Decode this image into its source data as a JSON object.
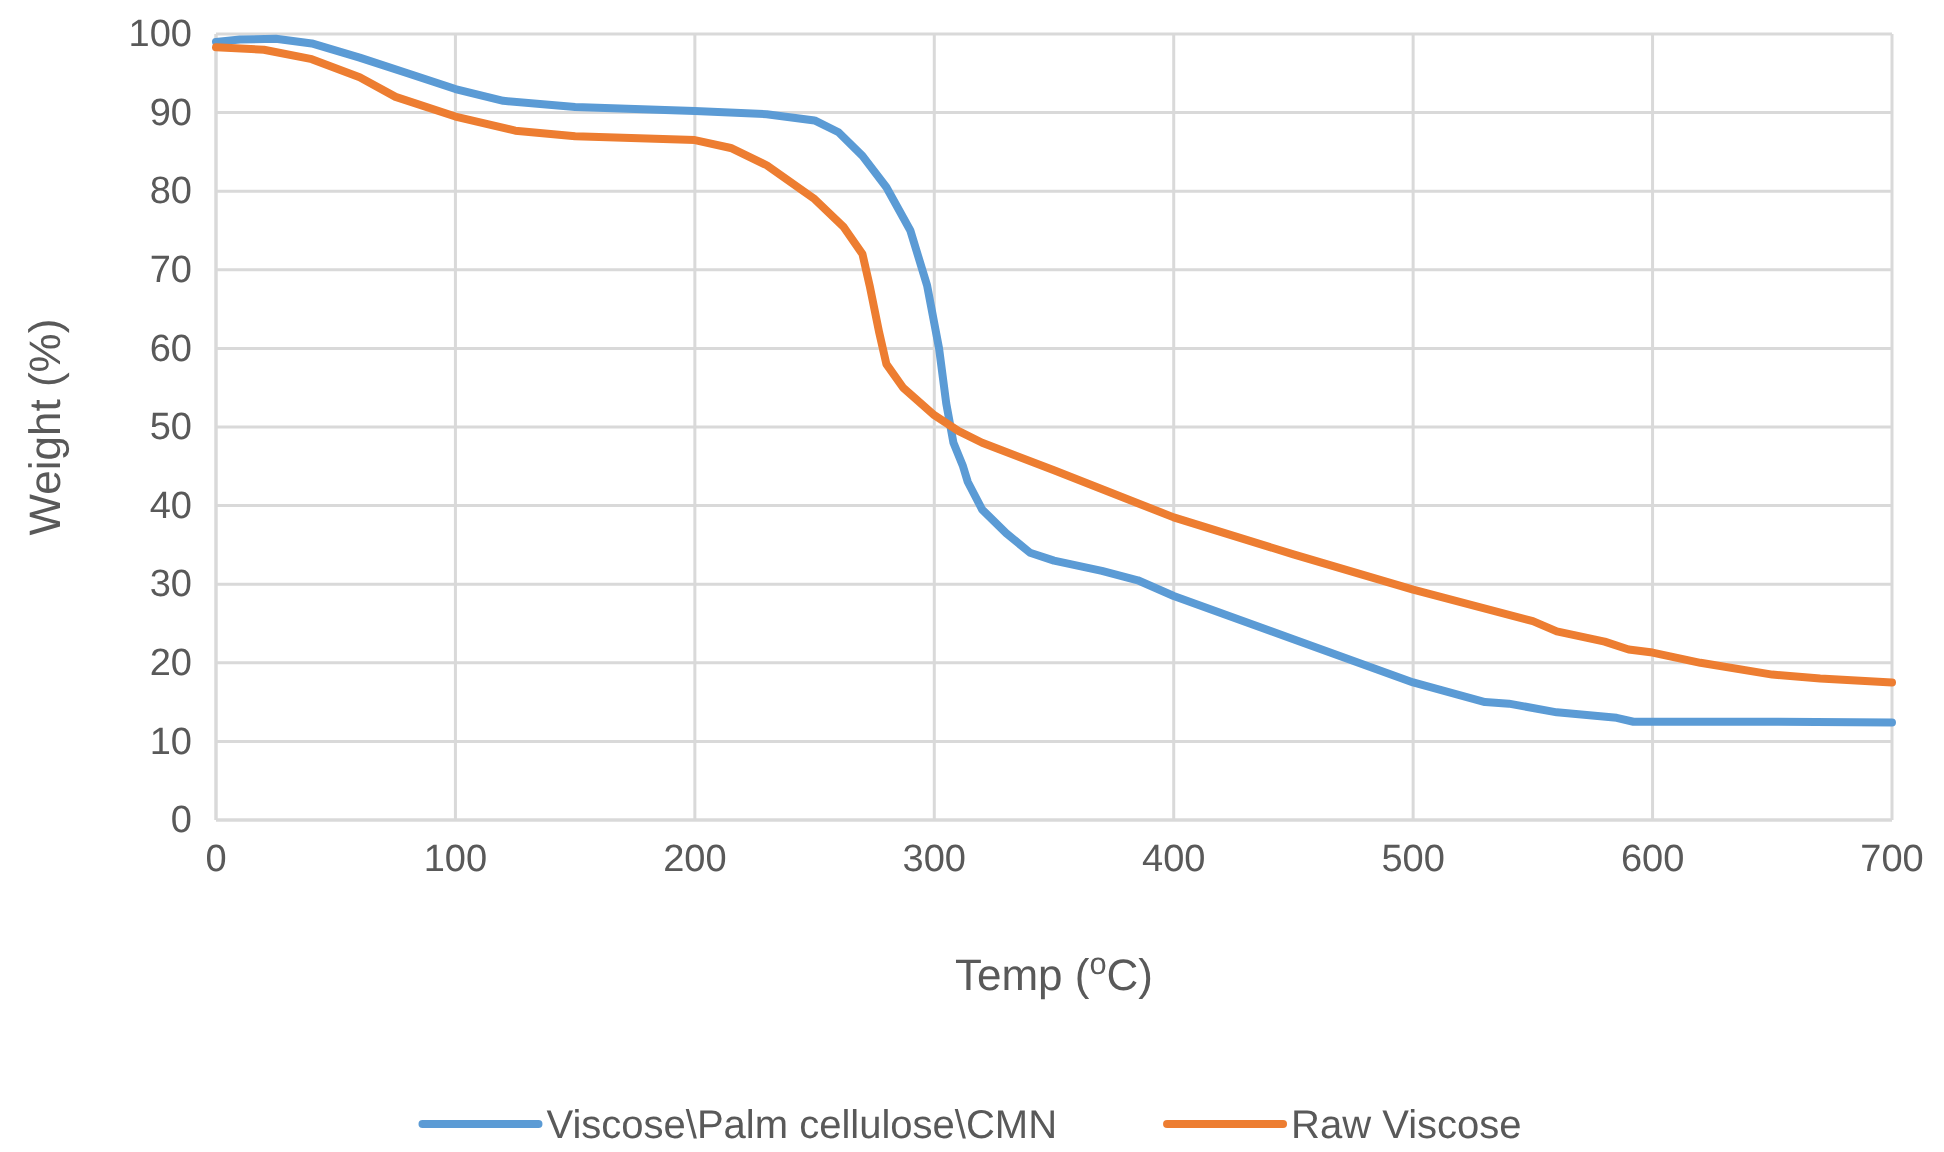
{
  "chart_data": {
    "type": "line",
    "xlabel": "Temp ($^{o}$C)",
    "ylabel": "Weight (%)",
    "xlim": [
      0,
      700
    ],
    "xticks": [
      0,
      100,
      200,
      300,
      400,
      500,
      600,
      700
    ],
    "ylim": [
      0,
      100
    ],
    "yticks": [
      0,
      10,
      20,
      30,
      40,
      50,
      60,
      70,
      80,
      90,
      100
    ],
    "grid": true,
    "legend": "bottom",
    "marker": "none",
    "line_style": "solid",
    "series": [
      {
        "name": "Viscose\\Palm cellulose\\CMN",
        "color": "#5b9bd5",
        "x": [
          0,
          10,
          25,
          40,
          60,
          80,
          100,
          120,
          150,
          200,
          230,
          250,
          260,
          270,
          280,
          290,
          297,
          302,
          305,
          308,
          312,
          314,
          320,
          330,
          340,
          350,
          370,
          385,
          400,
          450,
          500,
          530,
          540,
          560,
          585,
          592,
          650,
          700
        ],
        "values": [
          99,
          99.3,
          99.4,
          98.8,
          97,
          95,
          93,
          91.5,
          90.7,
          90.2,
          89.8,
          89,
          87.5,
          84.5,
          80.5,
          75,
          68,
          60,
          53,
          48,
          45,
          43,
          39.5,
          36.5,
          34,
          33,
          31.7,
          30.5,
          28.5,
          23,
          17.5,
          15,
          14.8,
          13.7,
          13,
          12.5,
          12.5,
          12.4
        ]
      },
      {
        "name": "Raw Viscose",
        "color": "#ed7d31",
        "x": [
          0,
          20,
          40,
          60,
          75,
          100,
          125,
          150,
          200,
          215,
          230,
          250,
          262,
          270,
          273,
          277,
          280,
          287,
          300,
          310,
          320,
          350,
          400,
          450,
          500,
          550,
          560,
          580,
          590,
          600,
          620,
          650,
          670,
          700
        ],
        "values": [
          98.3,
          98,
          96.8,
          94.5,
          92,
          89.5,
          87.7,
          87,
          86.5,
          85.5,
          83.3,
          79,
          75.5,
          72,
          68,
          62,
          58,
          55,
          51.5,
          49.5,
          48,
          44.5,
          38.5,
          33.8,
          29.3,
          25.3,
          24,
          22.7,
          21.7,
          21.3,
          20,
          18.5,
          18,
          17.5
        ]
      }
    ]
  }
}
